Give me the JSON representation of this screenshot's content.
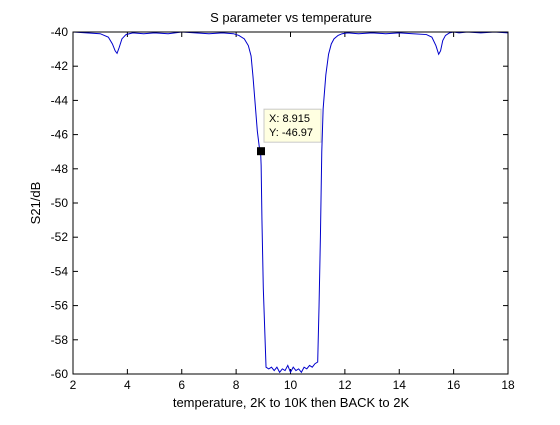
{
  "colors": {
    "background": "#ffffff",
    "axes": "#000000",
    "series": "#0000cc",
    "datatip_fill": "#ffffe1",
    "datatip_border": "#c8c8c8",
    "marker": "#000000"
  },
  "chart_data": {
    "type": "line",
    "title": "S parameter vs temperature",
    "xlabel": "temperature, 2K to 10K then BACK to 2K",
    "ylabel": "S21/dB",
    "xlim": [
      2,
      18
    ],
    "ylim": [
      -60,
      -40
    ],
    "xticks": [
      2,
      4,
      6,
      8,
      10,
      12,
      14,
      16,
      18
    ],
    "xtick_labels": [
      "2",
      "4",
      "6",
      "8",
      "10",
      "12",
      "14",
      "16",
      "18"
    ],
    "yticks": [
      -40,
      -42,
      -44,
      -46,
      -48,
      -50,
      -52,
      -54,
      -56,
      -58,
      -60
    ],
    "ytick_labels": [
      "-40",
      "-42",
      "-44",
      "-46",
      "-48",
      "-50",
      "-52",
      "-54",
      "-56",
      "-58",
      "-60"
    ],
    "grid": false,
    "legend": "none",
    "series": [
      {
        "x": [
          2.0,
          2.5,
          3.0,
          3.3,
          3.45,
          3.55,
          3.62,
          3.7,
          3.8,
          3.95,
          4.2,
          4.6,
          5.0,
          5.5,
          6.0,
          6.5,
          7.0,
          7.5,
          7.9,
          8.1,
          8.3,
          8.45,
          8.55,
          8.62,
          8.7,
          8.78,
          8.85,
          8.9,
          8.92,
          8.95,
          9.0,
          9.1,
          9.2,
          9.3,
          9.4,
          9.5,
          9.6,
          9.7,
          9.8,
          9.9,
          10.0,
          10.1,
          10.2,
          10.3,
          10.4,
          10.5,
          10.6,
          10.7,
          10.8,
          10.9,
          11.0,
          11.05,
          11.1,
          11.15,
          11.2,
          11.3,
          11.4,
          11.5,
          11.6,
          11.75,
          11.9,
          12.1,
          12.5,
          13.0,
          13.5,
          14.0,
          14.5,
          15.0,
          15.2,
          15.35,
          15.45,
          15.52,
          15.6,
          15.7,
          15.85,
          16.0,
          16.2,
          16.5,
          17.0,
          17.5,
          18.0
        ],
        "y": [
          -40.0,
          -40.05,
          -40.1,
          -40.3,
          -40.7,
          -41.1,
          -41.25,
          -40.9,
          -40.4,
          -40.15,
          -40.05,
          -40.1,
          -40.05,
          -40.1,
          -40.0,
          -40.05,
          -40.1,
          -40.05,
          -40.1,
          -40.2,
          -40.4,
          -40.8,
          -41.4,
          -42.6,
          -44.2,
          -45.8,
          -46.7,
          -46.97,
          -47.8,
          -51.0,
          -55.0,
          -59.6,
          -59.7,
          -59.6,
          -59.8,
          -59.6,
          -59.9,
          -59.7,
          -59.8,
          -59.5,
          -59.9,
          -59.6,
          -59.8,
          -59.7,
          -59.9,
          -59.6,
          -59.7,
          -59.5,
          -59.6,
          -59.4,
          -59.3,
          -56.0,
          -52.0,
          -47.0,
          -44.5,
          -42.5,
          -41.3,
          -40.7,
          -40.4,
          -40.2,
          -40.1,
          -40.05,
          -40.1,
          -40.05,
          -40.1,
          -40.05,
          -40.1,
          -40.15,
          -40.3,
          -40.8,
          -41.3,
          -41.1,
          -40.5,
          -40.2,
          -40.05,
          -40.0,
          -40.05,
          -40.0,
          -40.05,
          -40.0,
          -40.05
        ]
      }
    ],
    "annotation": {
      "x": 8.915,
      "y": -46.97,
      "x_text": "X: 8.915",
      "y_text": "Y: -46.97"
    }
  }
}
